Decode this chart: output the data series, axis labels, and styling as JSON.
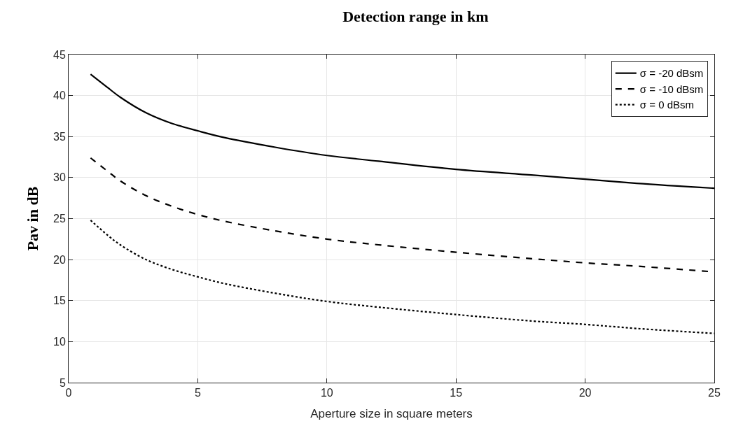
{
  "chart_data": {
    "type": "line",
    "title": "Detection range in km",
    "xlabel": "Aperture size in square meters",
    "ylabel": "Pav in dB",
    "x": [
      0.85,
      1.5,
      2,
      3,
      4,
      5,
      6,
      8,
      10,
      12,
      15,
      18,
      20,
      22,
      25
    ],
    "series": [
      {
        "name": "σ = -20 dBsm",
        "color": "#000000",
        "line_style": "solid",
        "values": [
          42.6,
          41.0,
          39.8,
          37.9,
          36.6,
          35.7,
          34.9,
          33.7,
          32.7,
          32.0,
          31.0,
          30.3,
          29.8,
          29.3,
          28.7
        ]
      },
      {
        "name": "σ = -10 dBsm",
        "color": "#000000",
        "line_style": "dashed",
        "values": [
          32.4,
          30.8,
          29.6,
          27.8,
          26.5,
          25.5,
          24.7,
          23.5,
          22.5,
          21.8,
          20.9,
          20.1,
          19.6,
          19.2,
          18.5
        ]
      },
      {
        "name": "σ = 0 dBsm",
        "color": "#000000",
        "line_style": "dotted",
        "values": [
          24.8,
          23.0,
          21.8,
          20.0,
          18.8,
          17.9,
          17.1,
          15.9,
          14.9,
          14.2,
          13.3,
          12.5,
          12.1,
          11.6,
          11.0
        ]
      }
    ],
    "xlim": [
      0,
      25
    ],
    "xticks": [
      0,
      5,
      10,
      15,
      20,
      25
    ],
    "ylim": [
      5,
      45
    ],
    "yticks": [
      5,
      10,
      15,
      20,
      25,
      30,
      35,
      40,
      45
    ],
    "grid": true,
    "legend": "top right",
    "marker": "none"
  }
}
